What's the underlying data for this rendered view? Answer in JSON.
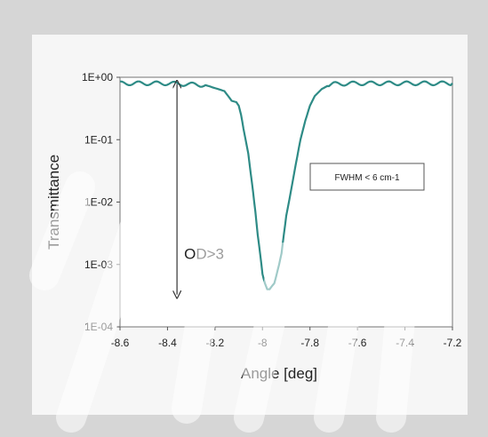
{
  "chart_data": {
    "type": "line",
    "title": "",
    "xlabel": "Angle  [deg]",
    "ylabel": "Transmittance",
    "yscale": "log",
    "xlim": [
      -8.6,
      -7.2
    ],
    "ylim": [
      0.0001,
      1
    ],
    "x_ticks": [
      -8.6,
      -8.4,
      -8.2,
      -8.0,
      -7.8,
      -7.6,
      -7.4,
      -7.2
    ],
    "x_tick_labels": [
      "-8.6",
      "-8.4",
      "-8.2",
      "-8",
      "-7.8",
      "-7.6",
      "-7.4",
      "-7.2"
    ],
    "y_ticks": [
      1,
      0.1,
      0.01,
      0.001,
      0.0001
    ],
    "y_tick_labels": [
      "1E+00",
      "1E-01",
      "1E-02",
      "1E-03",
      "1E-04"
    ],
    "series": [
      {
        "color": "#2e8b86",
        "x": [
          -8.6,
          -8.4,
          -8.24,
          -8.16,
          -8.13,
          -8.11,
          -8.1,
          -8.09,
          -8.08,
          -8.06,
          -8.05,
          -8.04,
          -8.03,
          -8.02,
          -8.01,
          -8.0,
          -7.99,
          -7.98,
          -7.97,
          -7.96,
          -7.95,
          -7.94,
          -7.93,
          -7.92,
          -7.91,
          -7.9,
          -7.88,
          -7.86,
          -7.84,
          -7.82,
          -7.8,
          -7.78,
          -7.75,
          -7.72,
          -7.7,
          -7.6,
          -7.4,
          -7.2
        ],
        "y": [
          0.8,
          0.8,
          0.75,
          0.6,
          0.42,
          0.4,
          0.35,
          0.25,
          0.15,
          0.06,
          0.03,
          0.015,
          0.007,
          0.003,
          0.0015,
          0.0007,
          0.0005,
          0.0004,
          0.0004,
          0.00045,
          0.0005,
          0.0007,
          0.001,
          0.0015,
          0.003,
          0.006,
          0.015,
          0.04,
          0.1,
          0.2,
          0.35,
          0.5,
          0.65,
          0.75,
          0.78,
          0.8,
          0.8,
          0.8
        ]
      }
    ],
    "annotations": {
      "od_label": "OD>3",
      "fwhm_label": "FWHM < 6 cm-1"
    },
    "grid": false,
    "legend": "none"
  }
}
